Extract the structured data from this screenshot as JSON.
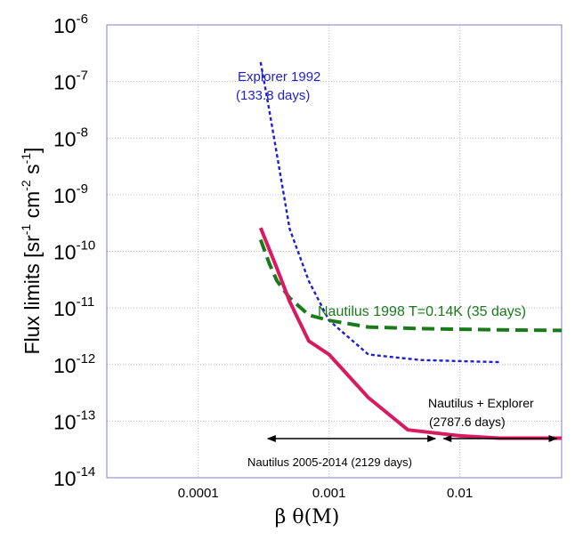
{
  "chart_data": {
    "type": "line",
    "title": "",
    "xlabel": "β θ(M)",
    "ylabel": "Flux limits  [sr-1 cm-2 s-1]",
    "ylabel_main": "Flux limits",
    "ylabel_units": {
      "open": "[sr",
      "exp1": "-1",
      "cm": " cm",
      "exp2": "-2",
      "s": " s",
      "exp3": "-1",
      "close": "]"
    },
    "x_scale": "log",
    "y_scale": "log",
    "xlim": [
      2e-05,
      0.06
    ],
    "ylim": [
      1e-14,
      1e-06
    ],
    "grid": true,
    "x_ticks": [
      {
        "value": 0.0001,
        "label": "0.0001"
      },
      {
        "value": 0.001,
        "label": "0.001"
      },
      {
        "value": 0.01,
        "label": "0.01"
      }
    ],
    "y_ticks": [
      {
        "value": 1e-06,
        "base": "10",
        "exp": "-6"
      },
      {
        "value": 1e-07,
        "base": "10",
        "exp": "-7"
      },
      {
        "value": 1e-08,
        "base": "10",
        "exp": "-8"
      },
      {
        "value": 1e-09,
        "base": "10",
        "exp": "-9"
      },
      {
        "value": 1e-10,
        "base": "10",
        "exp": "-10"
      },
      {
        "value": 1e-11,
        "base": "10",
        "exp": "-11"
      },
      {
        "value": 1e-12,
        "base": "10",
        "exp": "-12"
      },
      {
        "value": 1e-13,
        "base": "10",
        "exp": "-13"
      },
      {
        "value": 1e-14,
        "base": "10",
        "exp": "-14"
      }
    ],
    "series": [
      {
        "key": "explorer",
        "color": "#1f1fcf",
        "style": "dotted",
        "x": [
          0.0003,
          0.00035,
          0.0004,
          0.0005,
          0.0007,
          0.001,
          0.002,
          0.005,
          0.01,
          0.02
        ],
        "y": [
          2.2e-07,
          3e-08,
          5e-09,
          2.5e-10,
          3e-11,
          6e-12,
          1.5e-12,
          1.2e-12,
          1.15e-12,
          1.1e-12
        ]
      },
      {
        "key": "nautilus1998",
        "color": "#1a7a1a",
        "style": "dashed",
        "x": [
          0.0003,
          0.00035,
          0.0004,
          0.0005,
          0.0007,
          0.001,
          0.002,
          0.005,
          0.01,
          0.02,
          0.06
        ],
        "y": [
          1.6e-10,
          6e-11,
          3e-11,
          1.5e-11,
          7.5e-12,
          6e-12,
          4.6e-12,
          4.3e-12,
          4.2e-12,
          4.1e-12,
          4e-12
        ]
      },
      {
        "key": "combined",
        "color": "#d81b60",
        "style": "solid",
        "x": [
          0.0003,
          0.0004,
          0.0005,
          0.0007,
          0.001,
          0.002,
          0.004,
          0.01,
          0.02,
          0.06
        ],
        "y": [
          2.6e-10,
          5e-11,
          1.3e-11,
          2.6e-12,
          1.5e-12,
          2.6e-13,
          7e-14,
          5.5e-14,
          5e-14,
          5e-14
        ]
      }
    ],
    "annotations": {
      "explorer_line1": "Explorer 1992",
      "explorer_line2": "(133.8 days)",
      "nautilus1998": "Nautilus 1998 T=0.14K (35 days)",
      "combined_line1": "Nautilus + Explorer",
      "combined_line2": "(2787.6 days)",
      "nautilus2005": "Nautilus 2005-2014 (2129 days)"
    },
    "arrows": [
      {
        "from": 0.00034,
        "to": 0.0065,
        "y": 5e-14
      },
      {
        "from": 0.0075,
        "to": 0.055,
        "y": 5e-14
      }
    ]
  }
}
